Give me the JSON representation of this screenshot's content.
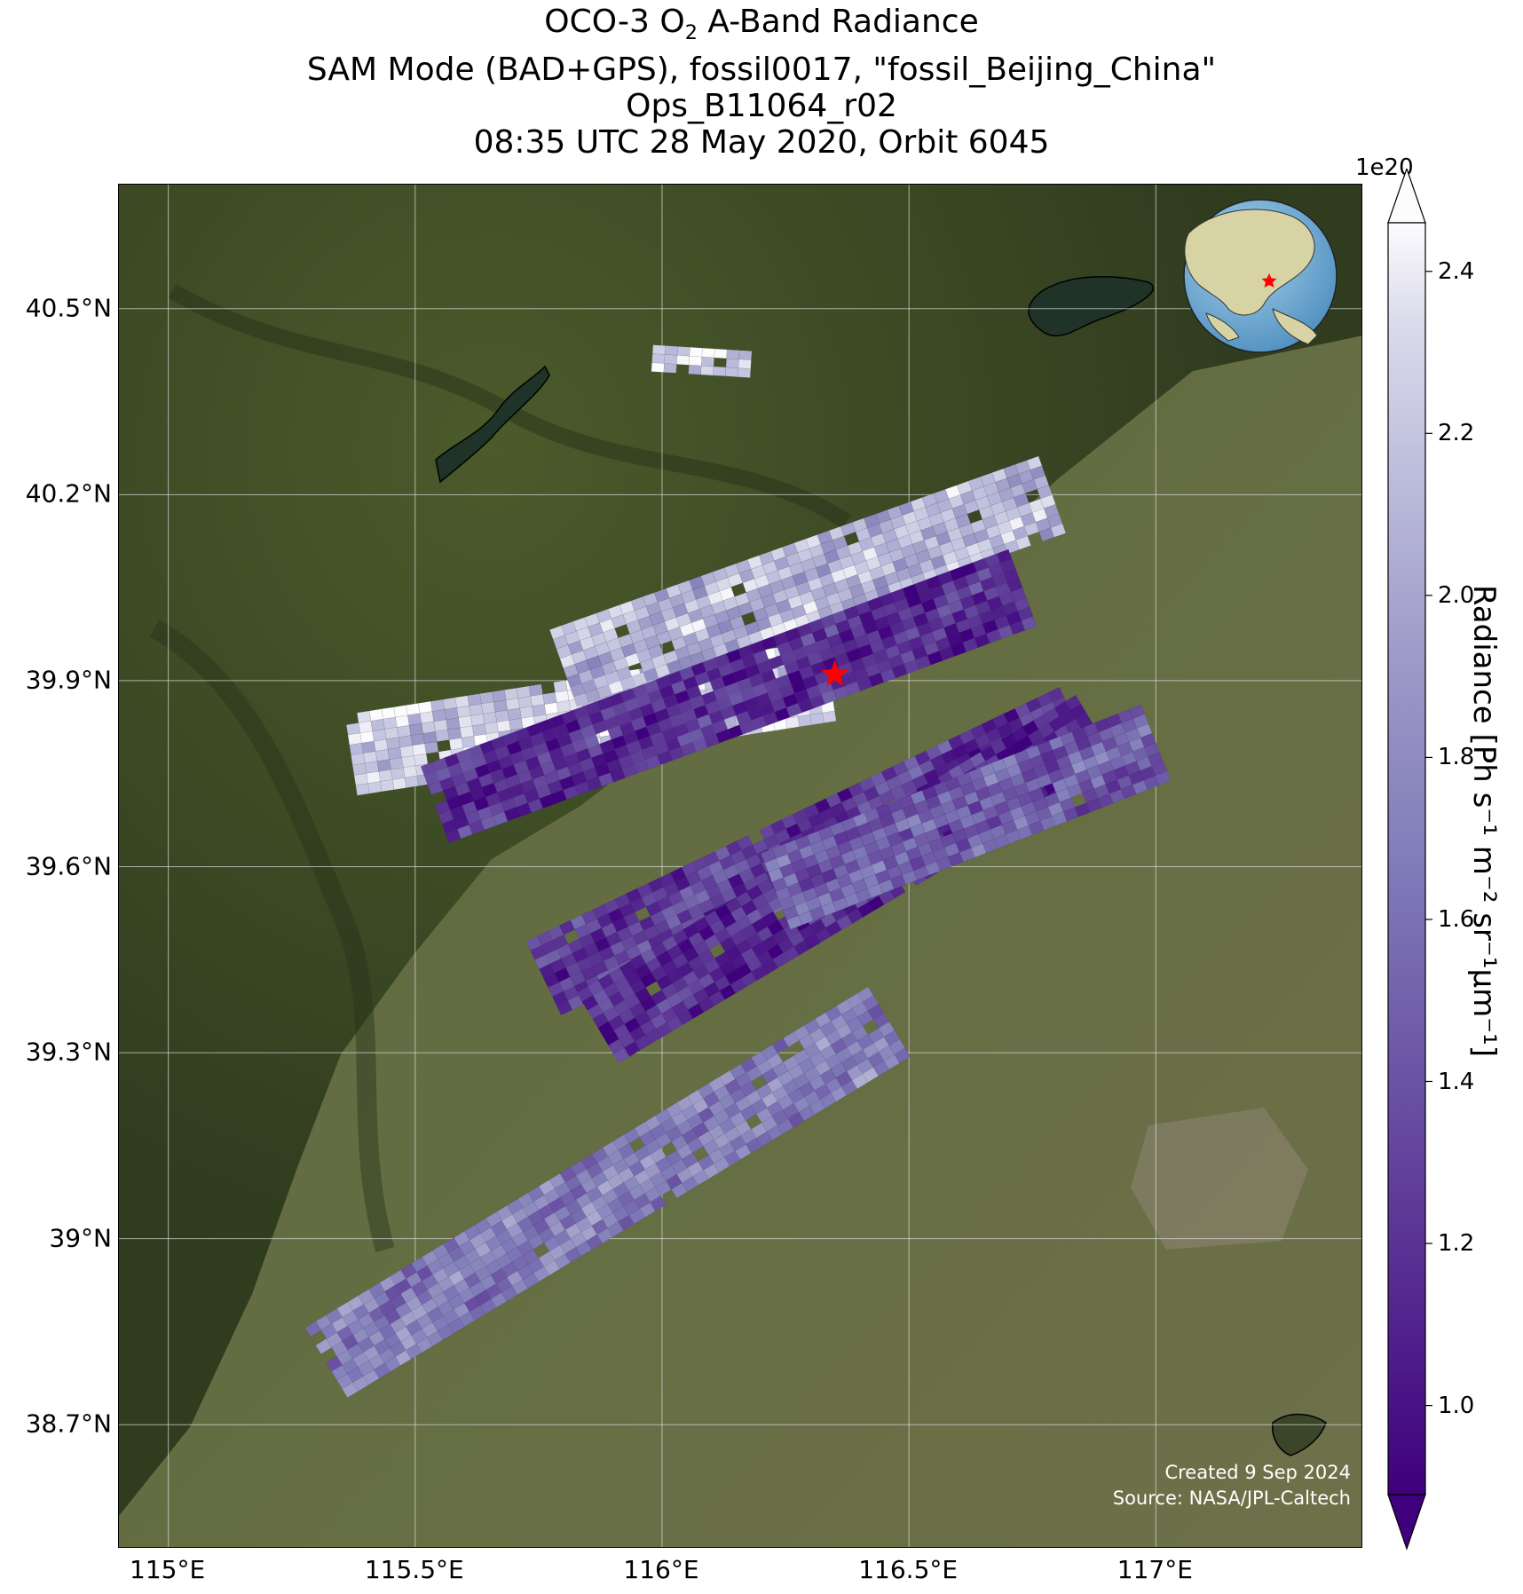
{
  "title": {
    "line1_prefix": "OCO-3 O",
    "line1_sub": "2",
    "line1_suffix": " A-Band Radiance",
    "line2": "SAM Mode (BAD+GPS), fossil0017, \"fossil_Beijing_China\"",
    "line3": "Ops_B11064_r02",
    "line4": "08:35 UTC 28 May 2020, Orbit 6045"
  },
  "map": {
    "lon_range": [
      114.9,
      117.42
    ],
    "lat_range": [
      38.5,
      40.7
    ],
    "lat_ticks": [
      "40.5°N",
      "40.2°N",
      "39.9°N",
      "39.6°N",
      "39.3°N",
      "39°N",
      "38.7°N"
    ],
    "lat_tick_values": [
      40.5,
      40.2,
      39.9,
      39.6,
      39.3,
      39.0,
      38.7
    ],
    "lon_ticks": [
      "115°E",
      "115.5°E",
      "116°E",
      "116.5°E",
      "117°E"
    ],
    "lon_tick_values": [
      115.0,
      115.5,
      116.0,
      116.5,
      117.0
    ],
    "target": {
      "name": "fossil_Beijing_China",
      "lon": 116.35,
      "lat": 39.91,
      "marker": "red-star"
    },
    "grid": true,
    "basemap": "satellite imagery",
    "inset_globe": {
      "center": "East Asia",
      "marker": "red-star"
    },
    "colors": {
      "star": "#ff0000",
      "grid": "#dddddd"
    }
  },
  "credit": {
    "created": "Created 9 Sep 2024",
    "source": "Source: NASA/JPL-Caltech"
  },
  "colorbar": {
    "multiplier": "1e20",
    "ticks": [
      "1.0",
      "1.2",
      "1.4",
      "1.6",
      "1.8",
      "2.0",
      "2.2",
      "2.4"
    ],
    "tick_values": [
      1.0,
      1.2,
      1.4,
      1.6,
      1.8,
      2.0,
      2.2,
      2.4
    ],
    "range": [
      0.89,
      2.46
    ],
    "extend": "both",
    "colormap": "Purples_r",
    "label": "Radiance [Ph s⁻¹ m⁻² sr⁻¹μm⁻¹]"
  },
  "chart_data": {
    "type": "heatmap",
    "title": "OCO-3 O2 A-Band Radiance",
    "xlabel": "",
    "ylabel": "",
    "units": "Ph s-1 m-2 sr-1 um-1 (x1e20)",
    "swaths": [
      {
        "index": 1,
        "start": [
          115.37,
          39.78
        ],
        "end": [
          116.34,
          39.9
        ],
        "typical_radiance": 2.2
      },
      {
        "index": 2,
        "start": [
          115.98,
          40.42
        ],
        "end": [
          116.18,
          40.41
        ],
        "typical_radiance": 2.2
      },
      {
        "index": 3,
        "start": [
          115.8,
          39.92
        ],
        "end": [
          116.79,
          40.2
        ],
        "typical_radiance": 2.1
      },
      {
        "index": 4,
        "start": [
          115.54,
          39.7
        ],
        "end": [
          116.73,
          40.05
        ],
        "typical_radiance": 1.15
      },
      {
        "index": 5,
        "start": [
          115.76,
          39.42
        ],
        "end": [
          116.84,
          39.83
        ],
        "typical_radiance": 1.25
      },
      {
        "index": 6,
        "start": [
          115.87,
          39.34
        ],
        "end": [
          116.88,
          39.82
        ],
        "typical_radiance": 1.15
      },
      {
        "index": 7,
        "start": [
          116.23,
          39.56
        ],
        "end": [
          117.0,
          39.8
        ],
        "typical_radiance": 1.5
      },
      {
        "index": 8,
        "start": [
          115.32,
          38.8
        ],
        "end": [
          116.46,
          39.35
        ],
        "typical_radiance": 1.7
      }
    ]
  }
}
